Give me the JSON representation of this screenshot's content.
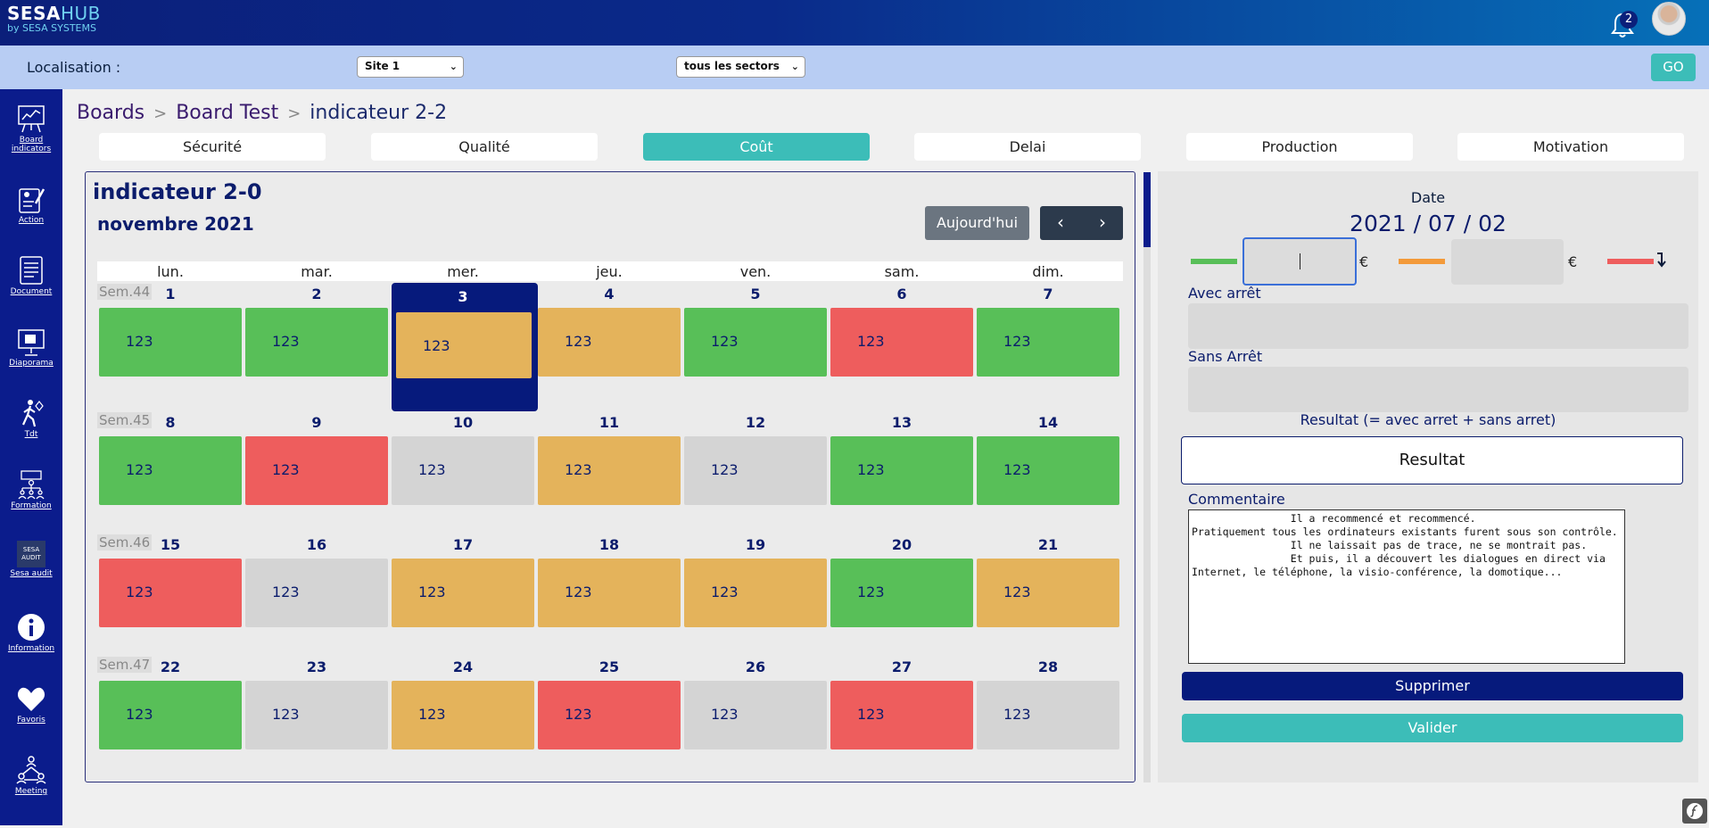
{
  "app": {
    "logo_main": "SESA",
    "logo_hub": "HUB",
    "logo_sub": "by SESA SYSTEMS",
    "notifications": "2"
  },
  "localisation": {
    "label": "Localisation :",
    "site": "Site 1",
    "sector": "tous les sectors",
    "go": "GO"
  },
  "sidebar": [
    {
      "label_1": "Board",
      "label_2": "indicators",
      "icon": "board-indicators-icon"
    },
    {
      "label_1": "Action",
      "icon": "action-icon"
    },
    {
      "label_1": "Document",
      "icon": "document-icon"
    },
    {
      "label_1": "Diaporama",
      "icon": "diaporama-icon"
    },
    {
      "label_1": "Tdt",
      "icon": "walking-person-icon"
    },
    {
      "label_1": "Formation",
      "icon": "formation-icon"
    },
    {
      "label_1": "Sesa audit",
      "icon": "sesa-audit-icon",
      "badge_1": "SESA",
      "badge_2": "AUDIT"
    },
    {
      "label_1": "Information",
      "icon": "info-icon"
    },
    {
      "label_1": "Favoris",
      "icon": "heart-icon"
    },
    {
      "label_1": "Meeting",
      "icon": "meeting-icon"
    }
  ],
  "breadcrumb": {
    "b1": "Boards",
    "b2": "Board Test",
    "current": "indicateur 2-2",
    "sep": ">"
  },
  "tabs": [
    "Sécurité",
    "Qualité",
    "Coût",
    "Delai",
    "Production",
    "Motivation"
  ],
  "calendar": {
    "title": "indicateur 2-0",
    "month": "novembre 2021",
    "today": "Aujourd'hui",
    "prev": "‹",
    "next": "›",
    "days": [
      "lun.",
      "mar.",
      "mer.",
      "jeu.",
      "ven.",
      "sam.",
      "dim."
    ],
    "weeks": [
      {
        "label": "Sem.44",
        "nums": [
          "1",
          "2",
          "3",
          "4",
          "5",
          "6",
          "7"
        ],
        "vals": [
          "123",
          "123",
          "123",
          "123",
          "123",
          "123",
          "123"
        ]
      },
      {
        "label": "Sem.45",
        "nums": [
          "8",
          "9",
          "10",
          "11",
          "12",
          "13",
          "14"
        ],
        "vals": [
          "123",
          "123",
          "123",
          "123",
          "123",
          "123",
          "123"
        ]
      },
      {
        "label": "Sem.46",
        "nums": [
          "15",
          "16",
          "17",
          "18",
          "19",
          "20",
          "21"
        ],
        "vals": [
          "123",
          "123",
          "123",
          "123",
          "123",
          "123",
          "123"
        ]
      },
      {
        "label": "Sem.47",
        "nums": [
          "22",
          "23",
          "24",
          "25",
          "26",
          "27",
          "28"
        ],
        "vals": [
          "123",
          "123",
          "123",
          "123",
          "123",
          "123",
          "123"
        ]
      }
    ],
    "status_colors": {
      "green": "#58bf58",
      "orange": "#e4b35b",
      "red": "#ee5d5d",
      "none": "#d4d4d4"
    }
  },
  "form": {
    "date_label": "Date",
    "date": "2021 / 07 / 02",
    "euro": "€",
    "avec_arret": "Avec arrêt",
    "sans_arret": "Sans Arrêt",
    "resultat_label": "Resultat (= avec arret + sans arret)",
    "resultat": "Resultat",
    "commentaire_label": "Commentaire",
    "commentaire": "                Il a recommencé et recommencé.\nPratiquement tous les ordinateurs existants furent sous son contrôle.\n                Il ne laissait pas de trace, ne se montrait pas.\n                Et puis, il a découvert les dialogues en direct via Internet, le téléphone, la visio-conférence, la domotique...",
    "supprimer": "Supprimer",
    "valider": "Valider"
  }
}
